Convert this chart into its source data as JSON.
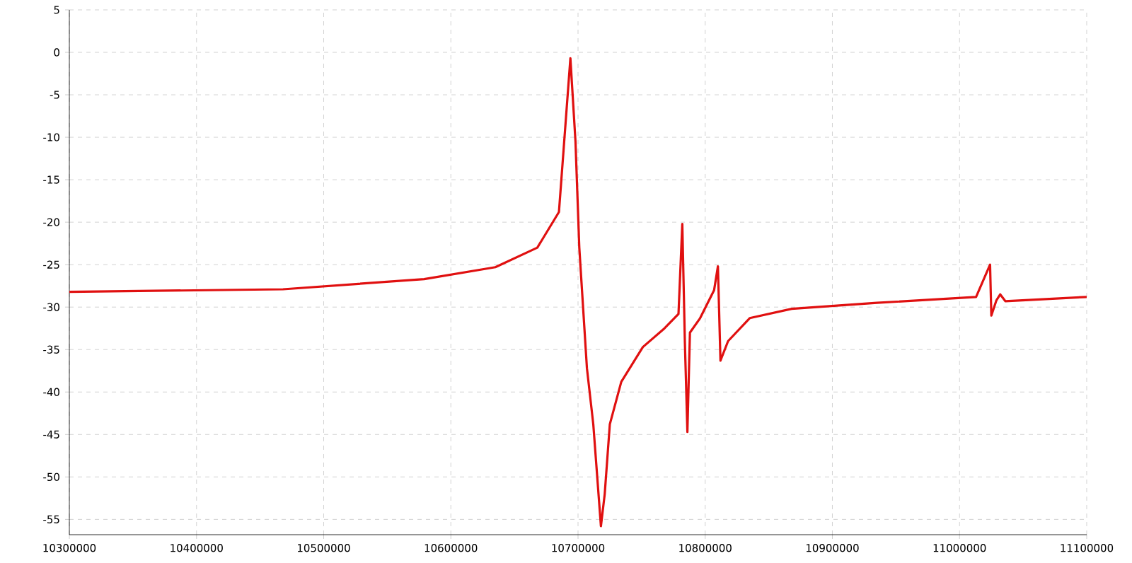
{
  "chart_data": {
    "type": "line",
    "color": "#e01010",
    "grid": true,
    "line_style": "solid",
    "marker": "none",
    "xlim": [
      10300000,
      11100000
    ],
    "ylim": [
      -56.8,
      5
    ],
    "xticks": [
      10300000,
      10400000,
      10500000,
      10600000,
      10700000,
      10800000,
      10900000,
      11000000,
      11100000
    ],
    "yticks": [
      5,
      0,
      -5,
      -10,
      -15,
      -20,
      -25,
      -30,
      -35,
      -40,
      -45,
      -50,
      -55
    ],
    "x": [
      10300000,
      10468000,
      10579000,
      10635000,
      10668000,
      10685000,
      10694000,
      10698000,
      10701000,
      10707000,
      10712000,
      10718000,
      10721000,
      10725000,
      10734000,
      10751000,
      10768000,
      10779000,
      10782000,
      10784000,
      10786000,
      10788000,
      10796000,
      10807000,
      10810000,
      10812000,
      10818000,
      10835000,
      10868000,
      10935000,
      11013000,
      11024000,
      11025000,
      11029000,
      11032000,
      11036000,
      11100000
    ],
    "values": [
      -28.2,
      -27.9,
      -26.7,
      -25.3,
      -23,
      -18.8,
      -0.7,
      -10.5,
      -23,
      -37.2,
      -43.8,
      -55.8,
      -52,
      -43.8,
      -38.8,
      -34.7,
      -32.5,
      -30.8,
      -20.2,
      -34,
      -44.7,
      -33,
      -31.3,
      -28,
      -25.2,
      -36.3,
      -34,
      -31.3,
      -30.2,
      -29.5,
      -28.8,
      -25,
      -31,
      -29.2,
      -28.5,
      -29.3,
      -28.8
    ]
  }
}
